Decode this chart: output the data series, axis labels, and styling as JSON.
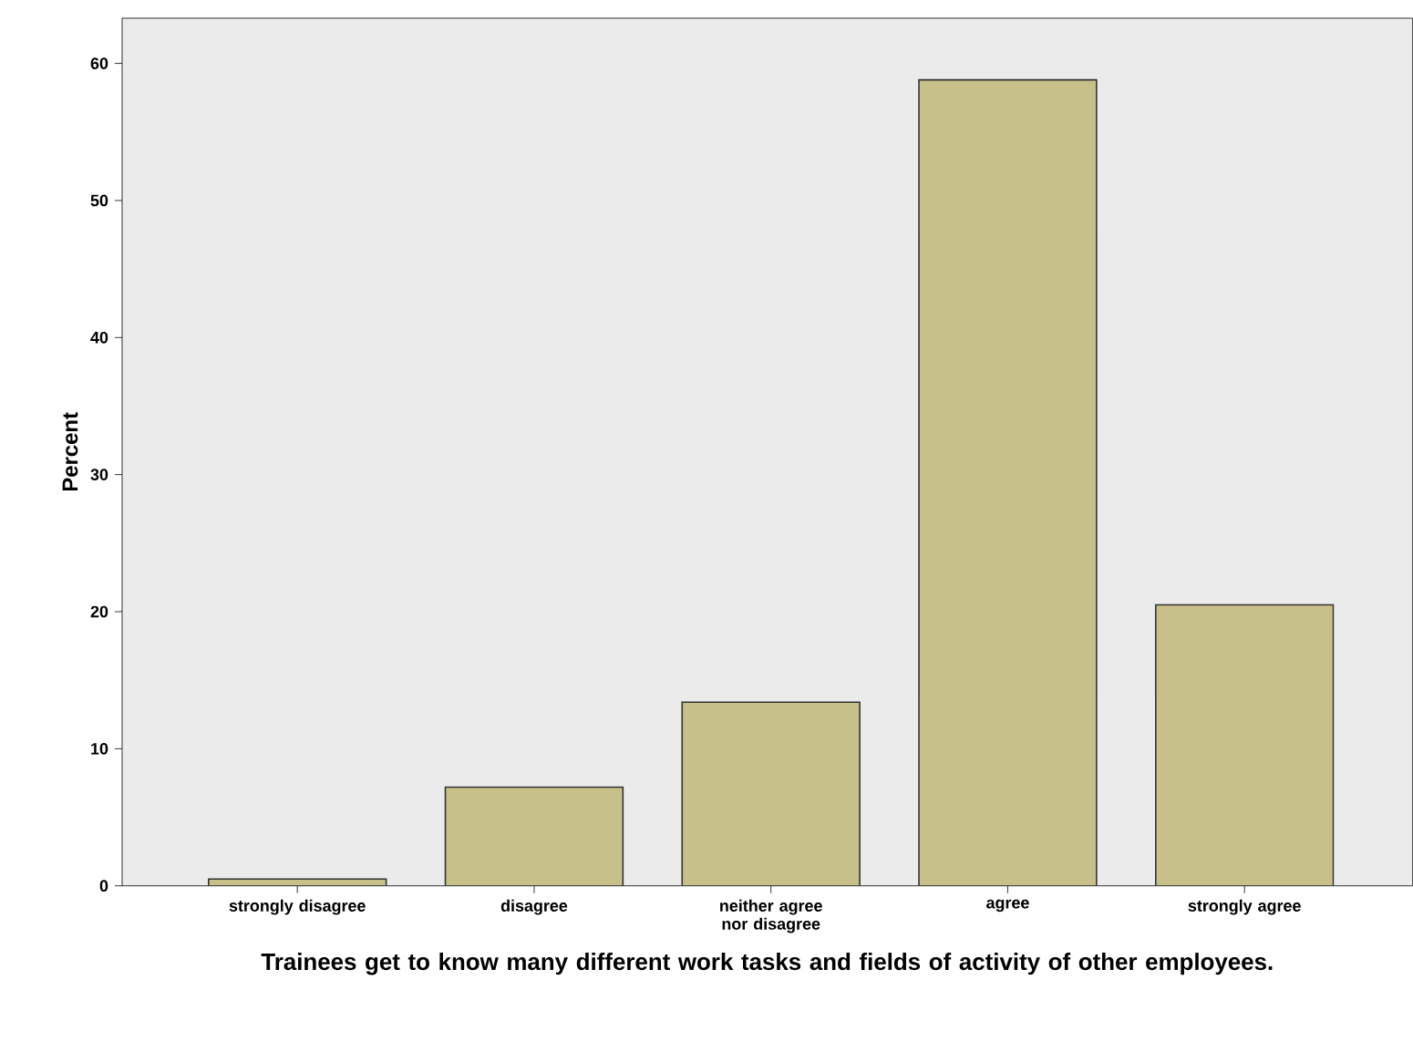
{
  "chart_data": {
    "type": "bar",
    "xlabel": "Trainees get to know many different work tasks and fields of activity of other employees.",
    "ylabel": "Percent",
    "categories": [
      "strongly disagree",
      "disagree",
      "neither agree nor disagree",
      "agree",
      "strongly agree"
    ],
    "values": [
      0.5,
      7.2,
      13.4,
      58.8,
      20.5
    ],
    "color": "#c8c08a",
    "ylim": [
      0,
      63.3
    ],
    "yticks": [
      0,
      10,
      20,
      30,
      40,
      50,
      60
    ]
  }
}
